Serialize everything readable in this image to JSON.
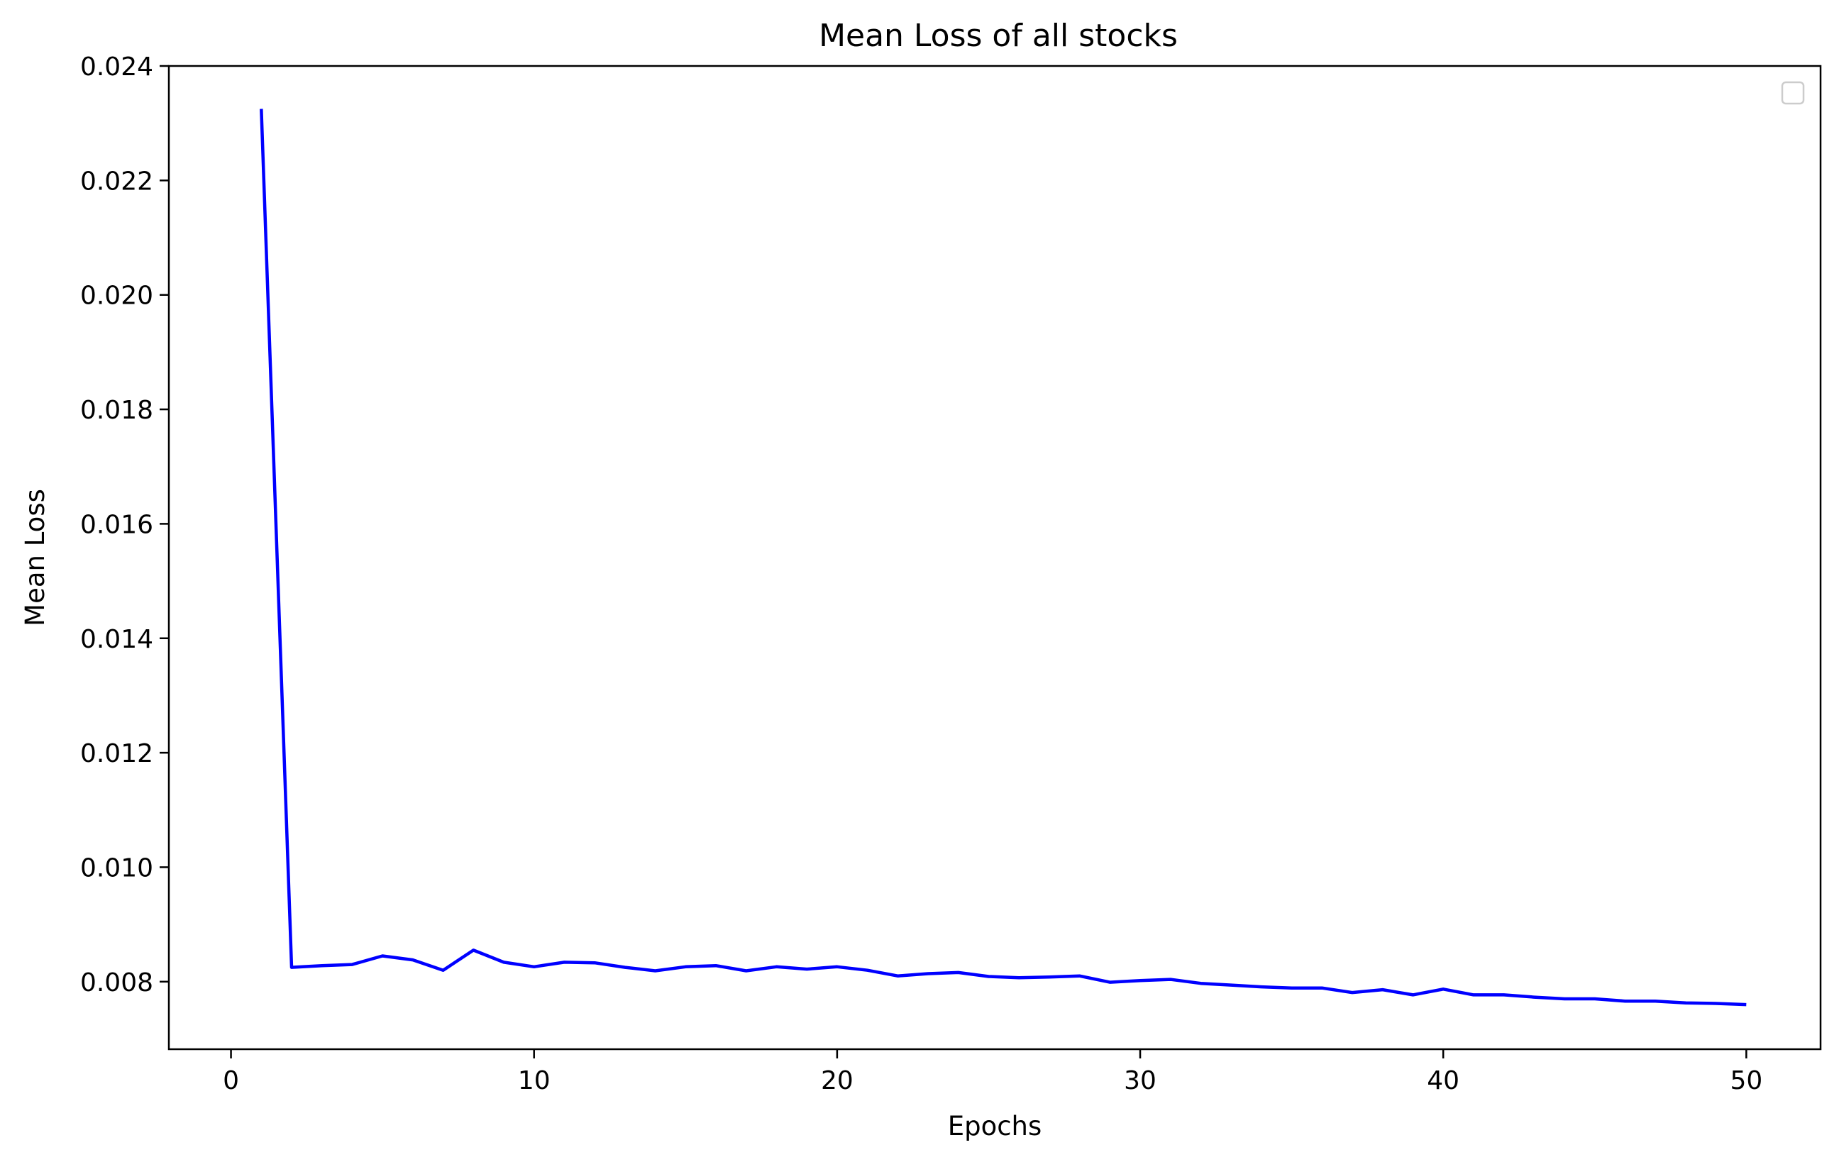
{
  "chart_data": {
    "type": "line",
    "title": "Mean Loss of all stocks",
    "xlabel": "Epochs",
    "ylabel": "Mean Loss",
    "xlim": [
      -2.05,
      52.45
    ],
    "ylim": [
      0.00682,
      0.024
    ],
    "xticks": [
      0,
      10,
      20,
      30,
      40,
      50
    ],
    "xtick_labels": [
      "0",
      "10",
      "20",
      "30",
      "40",
      "50"
    ],
    "yticks": [
      0.008,
      0.01,
      0.012,
      0.014,
      0.016,
      0.018,
      0.02,
      0.022,
      0.024
    ],
    "ytick_labels": [
      "0.008",
      "0.010",
      "0.012",
      "0.014",
      "0.016",
      "0.018",
      "0.020",
      "0.022",
      "0.024"
    ],
    "grid": false,
    "legend": "top-right, empty",
    "series": [
      {
        "color": "#0000ff",
        "x": [
          1,
          2,
          3,
          4,
          5,
          6,
          7,
          8,
          9,
          10,
          11,
          12,
          13,
          14,
          15,
          16,
          17,
          18,
          19,
          20,
          21,
          22,
          23,
          24,
          25,
          26,
          27,
          28,
          29,
          30,
          31,
          32,
          33,
          34,
          35,
          36,
          37,
          38,
          39,
          40,
          41,
          42,
          43,
          44,
          45,
          46,
          47,
          48,
          49,
          50
        ],
        "y": [
          0.02325,
          0.00825,
          0.00828,
          0.0083,
          0.00845,
          0.00838,
          0.0082,
          0.00855,
          0.00834,
          0.00826,
          0.00834,
          0.00833,
          0.00825,
          0.00819,
          0.00826,
          0.00828,
          0.00819,
          0.00826,
          0.00822,
          0.00826,
          0.0082,
          0.0081,
          0.00814,
          0.00816,
          0.00809,
          0.00807,
          0.00808,
          0.0081,
          0.00799,
          0.00802,
          0.00804,
          0.00797,
          0.00794,
          0.00791,
          0.00789,
          0.00789,
          0.00781,
          0.00786,
          0.00777,
          0.00787,
          0.00777,
          0.00777,
          0.00773,
          0.0077,
          0.0077,
          0.00766,
          0.00766,
          0.00763,
          0.00762,
          0.0076
        ]
      }
    ]
  }
}
